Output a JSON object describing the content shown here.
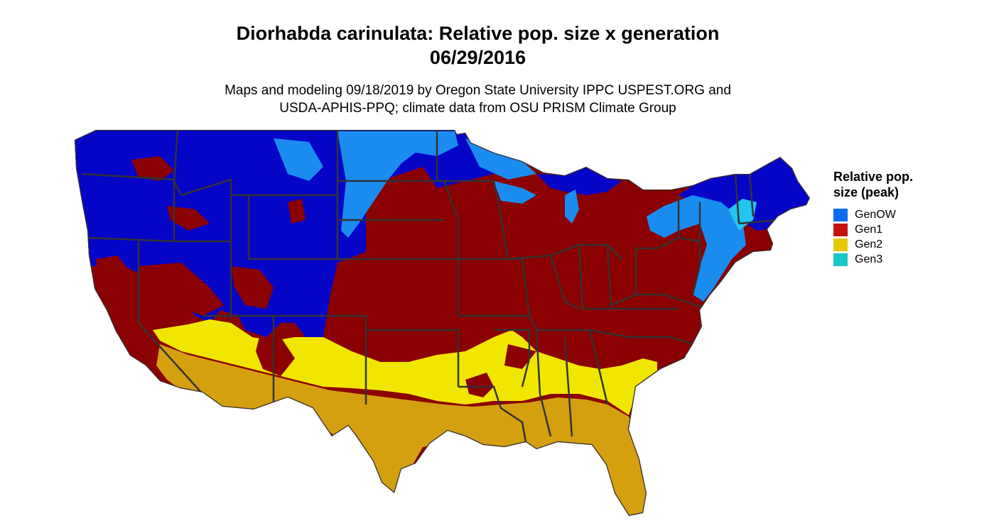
{
  "title_line1": "Diorhabda carinulata: Relative pop. size x generation",
  "title_line2": "06/29/2016",
  "subtitle_line1": "Maps and modeling 09/18/2019 by Oregon State University IPPC USPEST.ORG and",
  "subtitle_line2": "USDA-APHIS-PPQ; climate data from OSU PRISM Climate Group",
  "legend": {
    "title_line1": "Relative pop.",
    "title_line2": "size (peak)",
    "items": [
      {
        "label": "GenOW",
        "color": "#0a6cf0"
      },
      {
        "label": "Gen1",
        "color": "#c4120a"
      },
      {
        "label": "Gen2",
        "color": "#e6c800"
      },
      {
        "label": "Gen3",
        "color": "#18c6c8"
      }
    ]
  },
  "map_colors": {
    "genow_dark": "#0505c8",
    "genow_light": "#1a8cf0",
    "genow_cyan": "#22c4f0",
    "gen1": "#8b0000",
    "gen2_bright": "#f0e600",
    "gen2_gold": "#d4a010",
    "borders": "#333333"
  }
}
